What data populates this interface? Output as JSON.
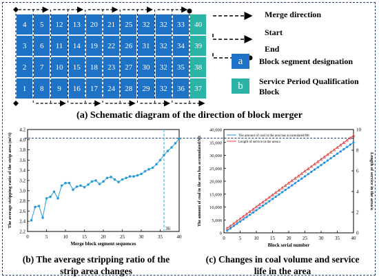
{
  "grid": {
    "rows": [
      [
        "4",
        "5",
        "12",
        "13",
        "20",
        "21",
        "25",
        "32",
        "32",
        "33",
        "40"
      ],
      [
        "3",
        "6",
        "11",
        "14",
        "19",
        "22",
        "26",
        "31",
        "32",
        "34",
        "39"
      ],
      [
        "2",
        "7",
        "10",
        "15",
        "18",
        "23",
        "27",
        "30",
        "32",
        "35",
        "38"
      ],
      [
        "1",
        "8",
        "9",
        "16",
        "17",
        "24",
        "28",
        "29",
        "32",
        "36",
        "37"
      ]
    ],
    "colors": {
      "block": "#1f73c6",
      "service": "#2bb3a5",
      "arrow": "#000000"
    }
  },
  "legend": {
    "merge_direction": "Merge direction",
    "start": "Start",
    "end": "End",
    "badge_a": "a",
    "badge_b": "b",
    "block_designation": "Block segment designation",
    "service_block": "Service Period Qualification Block"
  },
  "captions": {
    "a": "(a) Schematic diagram of the direction of block merger",
    "b": "(b) The average stripping ratio of the strip area changes",
    "c": "(c) Changes in coal volume and service life in the area"
  },
  "chart_data": [
    {
      "type": "line",
      "xlabel": "Merge block segment sequences",
      "ylabel": "The average stripping ratio of the strip area (m³/t)",
      "xlim": [
        0,
        40
      ],
      "ylim": [
        2.2,
        4.2
      ],
      "x_ticks": [
        "0",
        "5",
        "10",
        "15",
        "20",
        "25",
        "30",
        "35",
        "40"
      ],
      "y_ticks": [
        "2.2",
        "2.4",
        "2.6",
        "2.8",
        "3.0",
        "3.2",
        "3.4",
        "3.6",
        "3.8",
        "4.0",
        "4.2"
      ],
      "marker_line_label": "36",
      "marker_x": 36,
      "x": [
        1,
        2,
        3,
        4,
        5,
        6,
        7,
        8,
        9,
        10,
        11,
        12,
        13,
        14,
        15,
        16,
        17,
        18,
        19,
        20,
        21,
        22,
        23,
        24,
        25,
        26,
        27,
        28,
        29,
        30,
        31,
        32,
        33,
        34,
        35,
        36,
        37,
        38,
        39,
        40
      ],
      "y": [
        2.42,
        2.68,
        2.7,
        2.47,
        2.85,
        2.88,
        2.98,
        2.85,
        3.1,
        3.15,
        3.15,
        3.02,
        3.08,
        3.1,
        3.07,
        3.12,
        3.18,
        3.2,
        3.13,
        3.18,
        3.25,
        3.27,
        3.22,
        3.17,
        3.22,
        3.25,
        3.28,
        3.28,
        3.3,
        3.33,
        3.38,
        3.42,
        3.45,
        3.52,
        3.6,
        3.7,
        3.78,
        3.85,
        3.93,
        4.02
      ]
    },
    {
      "type": "line",
      "xlabel": "Block serial number",
      "ylabel": "The amount of coal in the area has accumulated/Mt",
      "y2label": "Length of service in the area/a",
      "xlim": [
        0,
        40
      ],
      "ylim": [
        0,
        40000
      ],
      "y2lim": [
        0,
        10
      ],
      "x_ticks": [
        "0",
        "5",
        "10",
        "15",
        "20",
        "25",
        "30",
        "35",
        "40"
      ],
      "y_ticks": [
        "0",
        "5,000",
        "10,000",
        "15,000",
        "20,000",
        "25,000",
        "30,000",
        "35,000",
        "40,000"
      ],
      "y2_ticks": [
        "0",
        "2",
        "4",
        "6",
        "8",
        "10"
      ],
      "series": [
        {
          "name": "The amount of coal in the area has accumulated/Mt",
          "color": "#1f8fe0",
          "axis": "left",
          "x": [
            1,
            2,
            3,
            4,
            5,
            6,
            7,
            8,
            9,
            10,
            11,
            12,
            13,
            14,
            15,
            16,
            17,
            18,
            19,
            20,
            21,
            22,
            23,
            24,
            25,
            26,
            27,
            28,
            29,
            30,
            31,
            32,
            33,
            34,
            35,
            36,
            37,
            38,
            39,
            40
          ],
          "y": [
            875,
            1750,
            2625,
            3500,
            4375,
            5250,
            6125,
            7000,
            7875,
            8750,
            9625,
            10500,
            11375,
            12250,
            13125,
            14000,
            14875,
            15750,
            16625,
            17500,
            18375,
            19250,
            20125,
            21000,
            21875,
            22750,
            23625,
            24500,
            25375,
            26250,
            27125,
            28000,
            28875,
            29750,
            30625,
            31500,
            32375,
            33250,
            34125,
            35000
          ]
        },
        {
          "name": "Length of service in the area/a",
          "color": "#e04040",
          "axis": "right",
          "x": [
            1,
            2,
            3,
            4,
            5,
            6,
            7,
            8,
            9,
            10,
            11,
            12,
            13,
            14,
            15,
            16,
            17,
            18,
            19,
            20,
            21,
            22,
            23,
            24,
            25,
            26,
            27,
            28,
            29,
            30,
            31,
            32,
            33,
            34,
            35,
            36,
            37,
            38,
            39,
            40
          ],
          "y": [
            0.45,
            0.68,
            0.91,
            1.14,
            1.37,
            1.6,
            1.83,
            2.06,
            2.29,
            2.52,
            2.75,
            2.98,
            3.21,
            3.44,
            3.67,
            3.9,
            4.13,
            4.36,
            4.59,
            4.82,
            5.05,
            5.28,
            5.51,
            5.74,
            5.97,
            6.2,
            6.43,
            6.66,
            6.89,
            7.12,
            7.35,
            7.58,
            7.81,
            8.04,
            8.27,
            8.5,
            8.73,
            8.96,
            9.19,
            9.42
          ]
        }
      ]
    }
  ]
}
